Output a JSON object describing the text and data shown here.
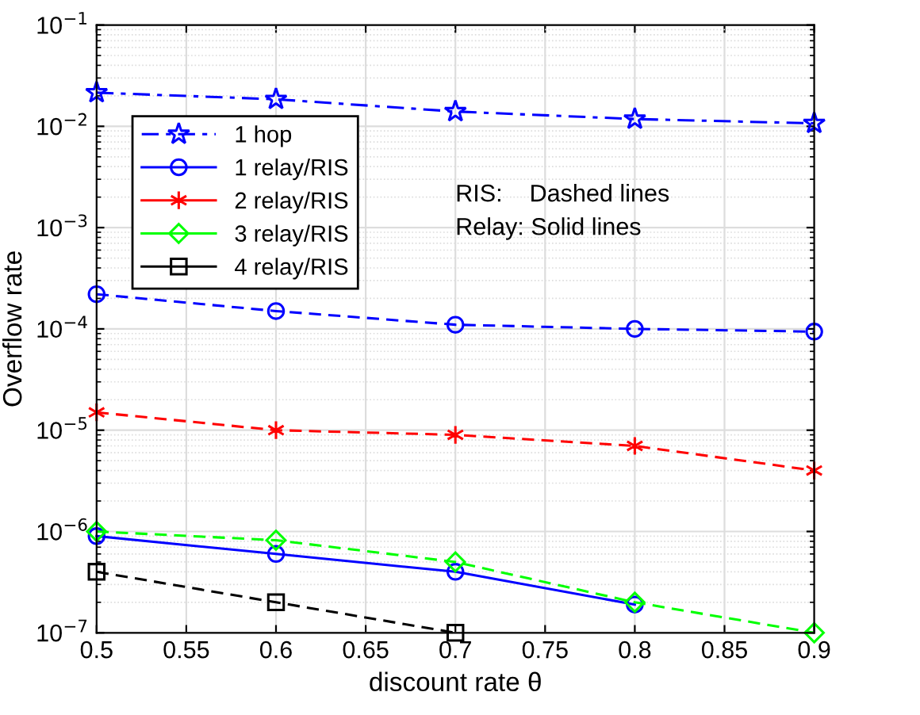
{
  "chart_data": {
    "type": "line",
    "xlabel": "discount rate θ",
    "ylabel": "Overflow rate",
    "x": [
      0.5,
      0.6,
      0.7,
      0.8,
      0.9
    ],
    "series": [
      {
        "name": "1 hop",
        "color": "#0000ff",
        "marker": "star",
        "line_style": "dashdot",
        "values": [
          0.0215,
          0.0185,
          0.014,
          0.0118,
          0.0107
        ]
      },
      {
        "name": "1 relay/RIS",
        "color": "#0000ff",
        "marker": "circle",
        "line_style": "solid",
        "values": [
          9e-07,
          6e-07,
          4e-07,
          1.9e-07,
          null
        ]
      },
      {
        "name": "2 relay/RIS",
        "color": "#ff0000",
        "marker": "cross",
        "line_style": "solid",
        "values": [
          null,
          null,
          null,
          null,
          null
        ]
      },
      {
        "name": "3 relay/RIS",
        "color": "#00ff00",
        "marker": "diamond",
        "line_style": "solid",
        "values": [
          null,
          null,
          null,
          null,
          null
        ]
      },
      {
        "name": "4 relay/RIS",
        "color": "#000000",
        "marker": "square",
        "line_style": "solid",
        "values": [
          null,
          null,
          null,
          null,
          null
        ]
      },
      {
        "color": "#0000ff",
        "marker": "circle",
        "line_style": "dashed",
        "values": [
          0.00022,
          0.00015,
          0.00011,
          0.0001,
          9.4e-05
        ]
      },
      {
        "color": "#ff0000",
        "marker": "cross",
        "line_style": "dashed",
        "values": [
          1.5e-05,
          1e-05,
          9e-06,
          7e-06,
          4e-06
        ]
      },
      {
        "color": "#00ff00",
        "marker": "diamond",
        "line_style": "dashed",
        "values": [
          1e-06,
          8.2e-07,
          5e-07,
          2e-07,
          1e-07
        ]
      },
      {
        "color": "#000000",
        "marker": "square",
        "line_style": "dashed",
        "values": [
          4e-07,
          2e-07,
          1e-07,
          null,
          null
        ]
      }
    ],
    "log": "y",
    "xlim": [
      0.5,
      0.9
    ],
    "xticks": [
      0.5,
      0.55,
      0.6,
      0.65,
      0.7,
      0.75,
      0.8,
      0.85,
      0.9
    ],
    "ylim": [
      1e-07,
      0.1
    ],
    "yticks": [
      {
        "value": 1e-07,
        "label": "10$^{−7}$"
      },
      {
        "value": 1e-06,
        "label": "10$^{−6}$"
      },
      {
        "value": 1e-05,
        "label": "10$^{−5}$"
      },
      {
        "value": 0.0001,
        "label": "10$^{−4}$"
      },
      {
        "value": 0.001,
        "label": "10$^{−3}$"
      },
      {
        "value": 0.01,
        "label": "10$^{−2}$"
      },
      {
        "value": 0.1,
        "label": "10$^{−1}$"
      }
    ],
    "grid": true,
    "legend": "top left",
    "annotations": [
      "RIS:    Dashed lines",
      "Relay: Solid lines"
    ]
  }
}
